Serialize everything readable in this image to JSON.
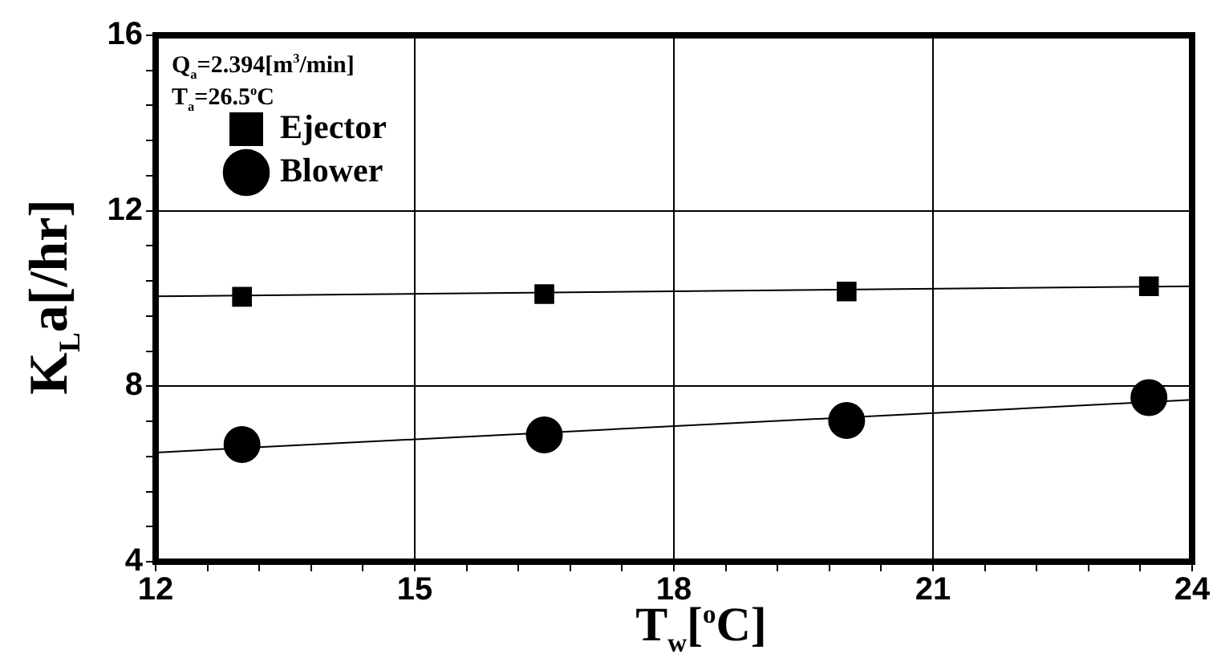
{
  "chart_data": {
    "type": "scatter",
    "xlabel": "T$_{w}$[$^{o}$C]",
    "ylabel": "K$_{L}$a[/hr]",
    "annotations": [
      "Q$_{a}$=2.394[m$^{3}$/min]",
      "T$_{a}$=26.5$^{o}$C"
    ],
    "xlim": [
      12,
      24
    ],
    "xticks": [
      12,
      {
        "value": 12.6,
        "label": null
      },
      {
        "value": 13.2,
        "label": null
      },
      {
        "value": 13.8,
        "label": null
      },
      {
        "value": 14.4,
        "label": null
      },
      15,
      {
        "value": 15.6,
        "label": null
      },
      {
        "value": 16.2,
        "label": null
      },
      {
        "value": 16.8,
        "label": null
      },
      {
        "value": 17.4,
        "label": null
      },
      18,
      {
        "value": 18.6,
        "label": null
      },
      {
        "value": 19.2,
        "label": null
      },
      {
        "value": 19.8,
        "label": null
      },
      {
        "value": 20.4,
        "label": null
      },
      21,
      {
        "value": 21.6,
        "label": null
      },
      {
        "value": 22.2,
        "label": null
      },
      {
        "value": 22.8,
        "label": null
      },
      {
        "value": 23.4,
        "label": null
      },
      24
    ],
    "ylim": [
      4,
      16
    ],
    "yticks": [
      4,
      {
        "value": 4.8,
        "label": null
      },
      {
        "value": 5.6,
        "label": null
      },
      {
        "value": 6.4,
        "label": null
      },
      {
        "value": 7.2,
        "label": null
      },
      8,
      {
        "value": 8.8,
        "label": null
      },
      {
        "value": 9.6,
        "label": null
      },
      {
        "value": 10.4,
        "label": null
      },
      {
        "value": 11.2,
        "label": null
      },
      12,
      {
        "value": 12.8,
        "label": null
      },
      {
        "value": 13.6,
        "label": null
      },
      {
        "value": 14.4,
        "label": null
      },
      {
        "value": 15.2,
        "label": null
      },
      16
    ],
    "grid": true,
    "legend": "top left",
    "series": [
      {
        "name": "Ejector",
        "color": "#000000",
        "marker": "square",
        "x": [
          13,
          16.5,
          20,
          23.5
        ],
        "values": [
          10.04,
          10.1,
          10.16,
          10.28
        ]
      },
      {
        "name": "Blower",
        "color": "#000000",
        "marker": "circle",
        "x": [
          13,
          16.5,
          20,
          23.5
        ],
        "values": [
          6.67,
          6.89,
          7.22,
          7.74
        ]
      },
      {
        "type": "line",
        "color": "#000000",
        "marker": "none",
        "x": [
          12,
          24
        ],
        "values": [
          10.05,
          10.28
        ]
      },
      {
        "type": "line",
        "color": "#000000",
        "marker": "none",
        "x": [
          12,
          24
        ],
        "values": [
          6.49,
          7.69
        ]
      }
    ]
  }
}
